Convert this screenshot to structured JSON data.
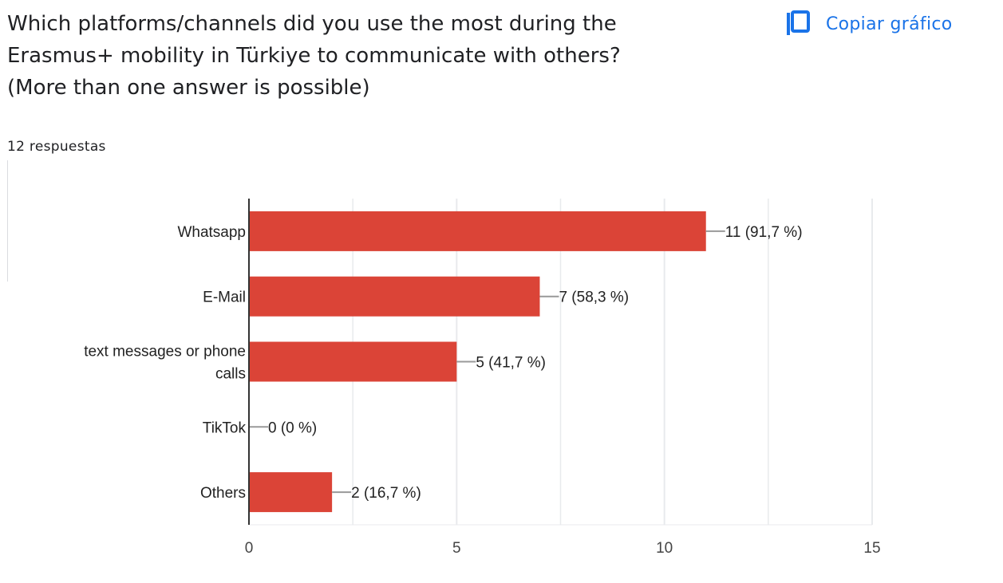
{
  "header": {
    "question": "Which platforms/channels did you use the most during the\nErasmus+ mobility in Türkiye to communicate with others?\n(More than one answer is possible)",
    "copy_label": "Copiar gráfico",
    "copy_icon": "copy-icon",
    "responses": "12 respuestas"
  },
  "colors": {
    "bar": "#db4437",
    "link": "#1a73e8",
    "grid": "#e8eaed",
    "axis": "#333333",
    "leader": "#999999"
  },
  "chart_data": {
    "type": "bar",
    "orientation": "horizontal",
    "categories": [
      "Whatsapp",
      "E-Mail",
      "text messages or phone calls",
      "TikTok",
      "Others"
    ],
    "category_lines": [
      [
        "Whatsapp"
      ],
      [
        "E-Mail"
      ],
      [
        "text messages or phone",
        "calls"
      ],
      [
        "TikTok"
      ],
      [
        "Others"
      ]
    ],
    "values": [
      11,
      7,
      5,
      0,
      2
    ],
    "data_labels": [
      "11 (91,7 %)",
      "7 (58,3 %)",
      "5 (41,7 %)",
      "0 (0 %)",
      "2 (16,7 %)"
    ],
    "xlim": [
      0,
      15
    ],
    "x_ticks": [
      0,
      5,
      10,
      15
    ],
    "grid": true,
    "title": "",
    "xlabel": "",
    "ylabel": ""
  }
}
